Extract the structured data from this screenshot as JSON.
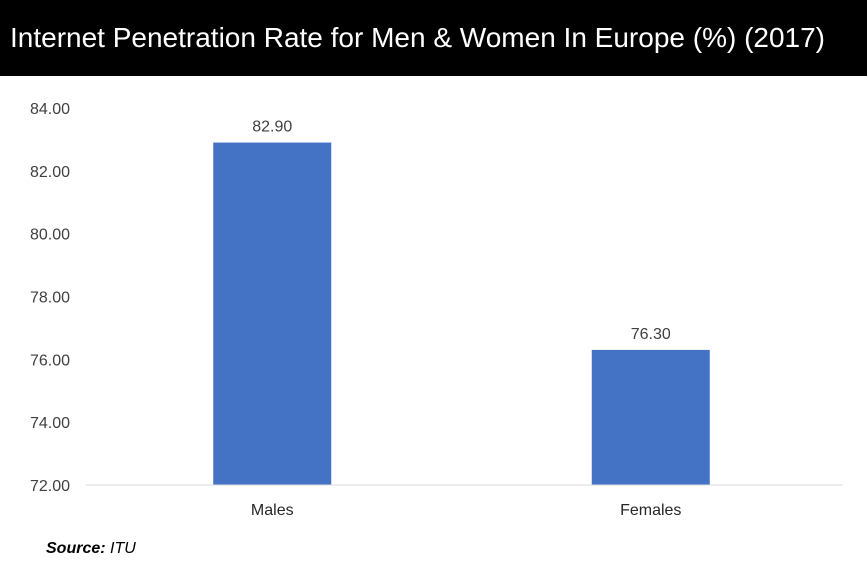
{
  "chart_data": {
    "type": "bar",
    "title": "Internet Penetration Rate for Men & Women In Europe (%) (2017)",
    "categories": [
      "Males",
      "Females"
    ],
    "values": [
      82.9,
      76.3
    ],
    "data_labels": [
      "82.90",
      "76.30"
    ],
    "ylim": [
      72,
      84
    ],
    "yticks": [
      "72.00",
      "74.00",
      "76.00",
      "78.00",
      "80.00",
      "82.00",
      "84.00"
    ],
    "ytick_values": [
      72,
      74,
      76,
      78,
      80,
      82,
      84
    ],
    "grid": false,
    "legend": "none",
    "bar_color": "#4472C4"
  },
  "source": {
    "label": "Source:",
    "value": "ITU"
  }
}
